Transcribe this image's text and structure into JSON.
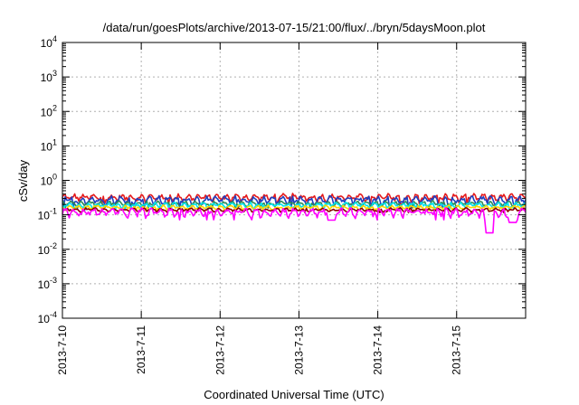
{
  "chart_data": {
    "type": "line",
    "title": "/data/run/goesPlots/archive/2013-07-15/21:00/flux/../bryn/5daysMoon.plot",
    "xlabel": "Coordinated Universal Time (UTC)",
    "ylabel": "cSv/day",
    "y_scale": "log",
    "ylim": [
      0.0001,
      10000
    ],
    "y_ticks": [
      {
        "base": "10",
        "exp": "4",
        "value": 10000
      },
      {
        "base": "10",
        "exp": "3",
        "value": 1000
      },
      {
        "base": "10",
        "exp": "2",
        "value": 100
      },
      {
        "base": "10",
        "exp": "1",
        "value": 10
      },
      {
        "base": "10",
        "exp": "0",
        "value": 1
      },
      {
        "base": "10",
        "exp": "-1",
        "value": 0.1
      },
      {
        "base": "10",
        "exp": "-2",
        "value": 0.01
      },
      {
        "base": "10",
        "exp": "-3",
        "value": 0.001
      },
      {
        "base": "10",
        "exp": "-4",
        "value": 0.0001
      }
    ],
    "xlim": [
      "2013-07-10",
      "2013-07-15T21:00"
    ],
    "x_ticks": [
      "2013-7-10",
      "2013-7-11",
      "2013-7-12",
      "2013-7-13",
      "2013-7-14",
      "2013-7-15"
    ],
    "x_tick_dates": [
      "2013-07-10",
      "2013-07-11",
      "2013-07-12",
      "2013-07-13",
      "2013-07-14",
      "2013-07-15"
    ],
    "grid": true,
    "legend": "none",
    "series": [
      {
        "color": "#e41a1c",
        "mean": 0.32,
        "amplitude": 0.14,
        "dips": []
      },
      {
        "color": "#1f3fbf",
        "mean": 0.27,
        "amplitude": 0.16,
        "dips": []
      },
      {
        "color": "#2e8b57",
        "mean": 0.21,
        "amplitude": 0.1,
        "dips": []
      },
      {
        "color": "#00e5ee",
        "mean": 0.19,
        "amplitude": 0.1,
        "dips": []
      },
      {
        "color": "#ffd700",
        "mean": 0.165,
        "amplitude": 0.08,
        "dips": []
      },
      {
        "color": "#8b0000",
        "mean": 0.14,
        "amplitude": 0.07,
        "dips": []
      },
      {
        "color": "#ff00ff",
        "mean": 0.12,
        "amplitude": 0.16,
        "dips": [
          {
            "t": "2013-07-13T10:00",
            "value": 0.07
          },
          {
            "t": "2013-07-15T10:00",
            "value": 0.03
          },
          {
            "t": "2013-07-15T17:00",
            "value": 0.06
          }
        ]
      }
    ]
  }
}
